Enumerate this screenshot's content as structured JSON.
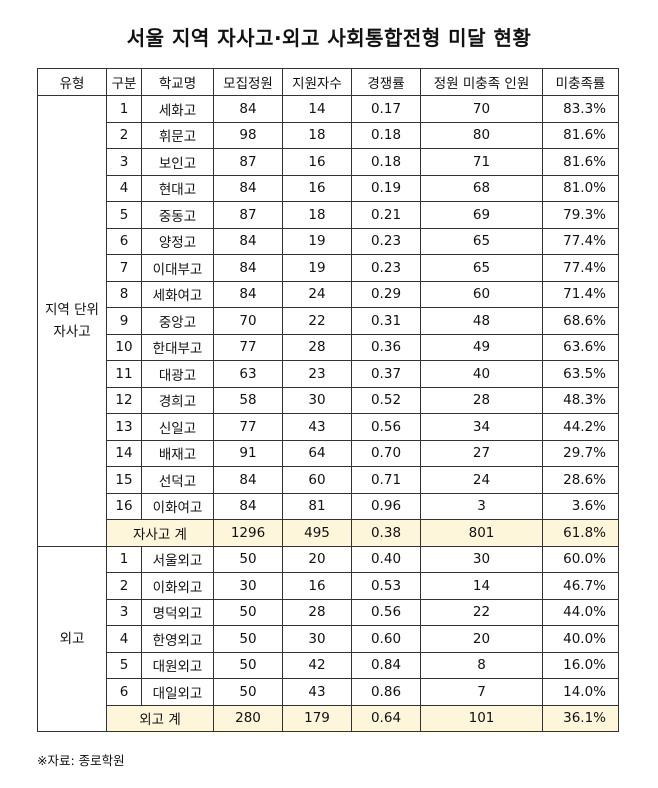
{
  "title": "서울 지역 자사고·외고 사회통합전형 미달 현황",
  "headers": [
    "유형",
    "구분",
    "학교명",
    "모집정원",
    "지원자수",
    "경쟁률",
    "정원 미충족 인원",
    "미충족률"
  ],
  "groups": [
    {
      "category_lines": [
        "지역 단위",
        "자사고"
      ],
      "rows": [
        [
          "1",
          "세화고",
          "84",
          "14",
          "0.17",
          "70",
          "83.3%"
        ],
        [
          "2",
          "휘문고",
          "98",
          "18",
          "0.18",
          "80",
          "81.6%"
        ],
        [
          "3",
          "보인고",
          "87",
          "16",
          "0.18",
          "71",
          "81.6%"
        ],
        [
          "4",
          "현대고",
          "84",
          "16",
          "0.19",
          "68",
          "81.0%"
        ],
        [
          "5",
          "중동고",
          "87",
          "18",
          "0.21",
          "69",
          "79.3%"
        ],
        [
          "6",
          "양정고",
          "84",
          "19",
          "0.23",
          "65",
          "77.4%"
        ],
        [
          "7",
          "이대부고",
          "84",
          "19",
          "0.23",
          "65",
          "77.4%"
        ],
        [
          "8",
          "세화여고",
          "84",
          "24",
          "0.29",
          "60",
          "71.4%"
        ],
        [
          "9",
          "중앙고",
          "70",
          "22",
          "0.31",
          "48",
          "68.6%"
        ],
        [
          "10",
          "한대부고",
          "77",
          "28",
          "0.36",
          "49",
          "63.6%"
        ],
        [
          "11",
          "대광고",
          "63",
          "23",
          "0.37",
          "40",
          "63.5%"
        ],
        [
          "12",
          "경희고",
          "58",
          "30",
          "0.52",
          "28",
          "48.3%"
        ],
        [
          "13",
          "신일고",
          "77",
          "43",
          "0.56",
          "34",
          "44.2%"
        ],
        [
          "14",
          "배재고",
          "91",
          "64",
          "0.70",
          "27",
          "29.7%"
        ],
        [
          "15",
          "선덕고",
          "84",
          "60",
          "0.71",
          "24",
          "28.6%"
        ],
        [
          "16",
          "이화여고",
          "84",
          "81",
          "0.96",
          "3",
          "3.6%"
        ]
      ],
      "total": [
        "자사고 계",
        "1296",
        "495",
        "0.38",
        "801",
        "61.8%"
      ]
    },
    {
      "category_lines": [
        "외고"
      ],
      "rows": [
        [
          "1",
          "서울외고",
          "50",
          "20",
          "0.40",
          "30",
          "60.0%"
        ],
        [
          "2",
          "이화외고",
          "30",
          "16",
          "0.53",
          "14",
          "46.7%"
        ],
        [
          "3",
          "명덕외고",
          "50",
          "28",
          "0.56",
          "22",
          "44.0%"
        ],
        [
          "4",
          "한영외고",
          "50",
          "30",
          "0.60",
          "20",
          "40.0%"
        ],
        [
          "5",
          "대원외고",
          "50",
          "42",
          "0.84",
          "8",
          "16.0%"
        ],
        [
          "6",
          "대일외고",
          "50",
          "43",
          "0.86",
          "7",
          "14.0%"
        ]
      ],
      "total": [
        "외고 계",
        "280",
        "179",
        "0.64",
        "101",
        "36.1%"
      ]
    }
  ],
  "source": "※자료: 종로학원",
  "colors": {
    "total_row_bg": "#fdf6da",
    "border": "#333333"
  }
}
